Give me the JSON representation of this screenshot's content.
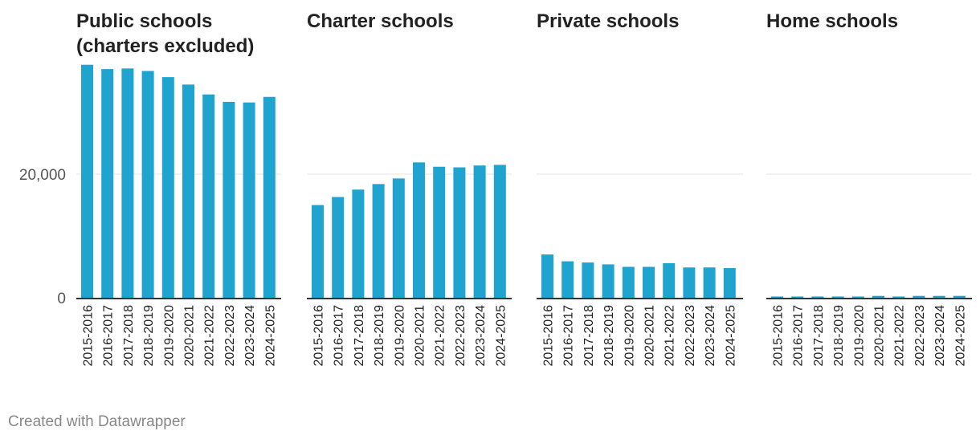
{
  "chart_data": {
    "type": "bar",
    "layout": "small-multiples",
    "categories": [
      "2015-2016",
      "2016-2017",
      "2017-2018",
      "2018-2019",
      "2019-2020",
      "2020-2021",
      "2021-2022",
      "2022-2023",
      "2023-2024",
      "2024-2025"
    ],
    "ylim": [
      0,
      38000
    ],
    "yticks": [
      {
        "value": 0,
        "label": "0"
      },
      {
        "value": 20000,
        "label": "20,000"
      }
    ],
    "grid": true,
    "bar_color": "#1ea4cf",
    "panels": [
      {
        "title_lines": [
          "Public schools",
          "(charters excluded)"
        ],
        "values": [
          37700,
          37000,
          37100,
          36700,
          35700,
          34500,
          32900,
          31700,
          31600,
          32500
        ]
      },
      {
        "title_lines": [
          "Charter schools"
        ],
        "values": [
          15000,
          16300,
          17500,
          18400,
          19300,
          21900,
          21200,
          21100,
          21400,
          21500
        ]
      },
      {
        "title_lines": [
          "Private schools"
        ],
        "values": [
          7000,
          5900,
          5700,
          5400,
          5000,
          5000,
          5600,
          4900,
          4900,
          4800
        ]
      },
      {
        "title_lines": [
          "Home schools"
        ],
        "values": [
          200,
          200,
          200,
          200,
          200,
          300,
          200,
          300,
          300,
          300
        ]
      }
    ]
  },
  "footer": {
    "credit": "Created with Datawrapper"
  }
}
